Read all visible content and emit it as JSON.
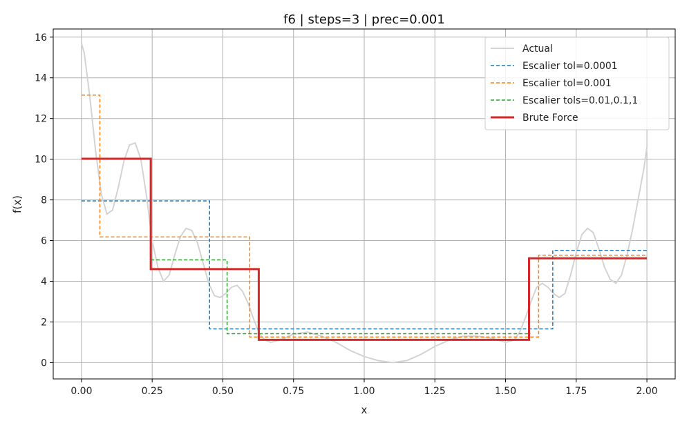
{
  "chart_data": {
    "type": "line",
    "title": "f6 | steps=3 | prec=0.001",
    "xlabel": "x",
    "ylabel": "f(x)",
    "xlim": [
      -0.1,
      2.1
    ],
    "ylim": [
      -0.8,
      16.4
    ],
    "xticks": [
      0.0,
      0.25,
      0.5,
      0.75,
      1.0,
      1.25,
      1.5,
      1.75,
      2.0
    ],
    "xtick_labels": [
      "0.00",
      "0.25",
      "0.50",
      "0.75",
      "1.00",
      "1.25",
      "1.50",
      "1.75",
      "2.00"
    ],
    "yticks": [
      0,
      2,
      4,
      6,
      8,
      10,
      12,
      14,
      16
    ],
    "ytick_labels": [
      "0",
      "2",
      "4",
      "6",
      "8",
      "10",
      "12",
      "14",
      "16"
    ],
    "grid": true,
    "legend_position": "top-right",
    "series": [
      {
        "name": "Actual",
        "style": "solid",
        "color": "#d3d3d3",
        "x": [
          0.0,
          0.01,
          0.03,
          0.05,
          0.07,
          0.09,
          0.11,
          0.13,
          0.15,
          0.17,
          0.19,
          0.21,
          0.23,
          0.25,
          0.27,
          0.29,
          0.31,
          0.33,
          0.35,
          0.37,
          0.39,
          0.41,
          0.43,
          0.45,
          0.47,
          0.49,
          0.51,
          0.53,
          0.55,
          0.57,
          0.59,
          0.61,
          0.63,
          0.65,
          0.67,
          0.7,
          0.75,
          0.8,
          0.85,
          0.9,
          0.95,
          1.0,
          1.05,
          1.1,
          1.15,
          1.2,
          1.25,
          1.3,
          1.35,
          1.4,
          1.45,
          1.5,
          1.53,
          1.55,
          1.57,
          1.59,
          1.61,
          1.63,
          1.65,
          1.67,
          1.69,
          1.71,
          1.73,
          1.75,
          1.77,
          1.79,
          1.81,
          1.83,
          1.85,
          1.87,
          1.89,
          1.91,
          1.93,
          1.95,
          1.97,
          1.99,
          2.0
        ],
        "y": [
          15.7,
          15.2,
          13.0,
          10.4,
          8.3,
          7.3,
          7.5,
          8.6,
          9.9,
          10.7,
          10.8,
          10.0,
          8.2,
          6.0,
          4.7,
          4.0,
          4.3,
          5.3,
          6.2,
          6.6,
          6.5,
          5.9,
          4.9,
          3.9,
          3.3,
          3.2,
          3.4,
          3.7,
          3.8,
          3.5,
          2.9,
          2.1,
          1.4,
          1.1,
          1.0,
          1.1,
          1.4,
          1.5,
          1.3,
          1.0,
          0.6,
          0.3,
          0.1,
          0.0,
          0.1,
          0.4,
          0.8,
          1.1,
          1.3,
          1.3,
          1.2,
          1.0,
          1.1,
          1.5,
          2.2,
          3.0,
          3.7,
          3.9,
          3.7,
          3.4,
          3.2,
          3.4,
          4.3,
          5.4,
          6.3,
          6.6,
          6.4,
          5.6,
          4.7,
          4.1,
          3.9,
          4.3,
          5.3,
          6.6,
          8.1,
          9.6,
          10.6
        ]
      },
      {
        "name": "Escalier tol=0.0001",
        "style": "dashed",
        "color": "#1f77b4",
        "x": [
          0.0,
          0.453,
          0.453,
          1.667,
          1.667,
          2.0
        ],
        "y": [
          7.95,
          7.95,
          1.66,
          1.66,
          5.52,
          5.52
        ]
      },
      {
        "name": "Escalier tol=0.001",
        "style": "dashed",
        "color": "#ff7f0e",
        "x": [
          0.0,
          0.065,
          0.065,
          0.595,
          0.595,
          1.617,
          1.617,
          2.0
        ],
        "y": [
          13.15,
          13.15,
          6.18,
          6.18,
          1.26,
          1.26,
          5.28,
          5.28
        ]
      },
      {
        "name": "Escalier tols=0.01,0.1,1",
        "style": "dashed",
        "color": "#2ca02c",
        "x": [
          0.245,
          0.515,
          0.515,
          1.588
        ],
        "y": [
          5.05,
          5.05,
          1.42,
          1.42
        ]
      },
      {
        "name": "Brute Force",
        "style": "solid",
        "color": "#d62728",
        "x": [
          0.0,
          0.245,
          0.245,
          0.627,
          0.627,
          1.583,
          1.583,
          2.0
        ],
        "y": [
          10.02,
          10.02,
          4.6,
          4.6,
          1.12,
          1.12,
          5.13,
          5.13
        ]
      }
    ]
  }
}
